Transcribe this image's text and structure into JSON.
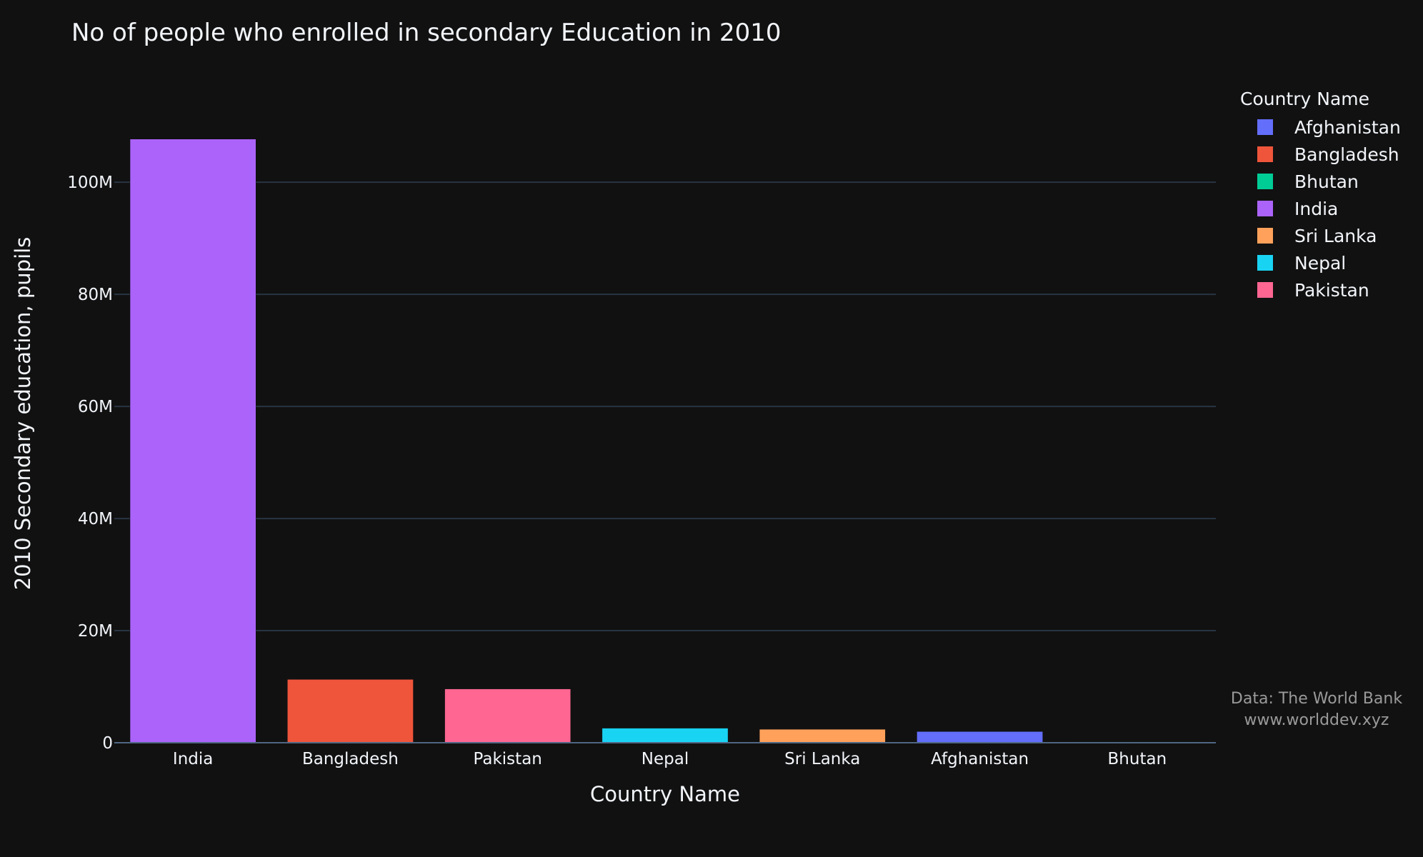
{
  "chart_data": {
    "type": "bar",
    "title": "No of people who enrolled in secondary Education in 2010",
    "xlabel": "Country Name",
    "ylabel": "2010 Secondary education, pupils",
    "categories": [
      "India",
      "Bangladesh",
      "Pakistan",
      "Nepal",
      "Sri Lanka",
      "Afghanistan",
      "Bhutan"
    ],
    "values": [
      107700000,
      11300000,
      9600000,
      2600000,
      2400000,
      2000000,
      70000
    ],
    "colors": [
      "#ab63fa",
      "#ef553b",
      "#ff6692",
      "#19d3f3",
      "#ffa15a",
      "#636efa",
      "#00cc96"
    ],
    "yticks": [
      0,
      20000000,
      40000000,
      60000000,
      80000000,
      100000000
    ],
    "ytick_labels": [
      "0",
      "20M",
      "40M",
      "60M",
      "80M",
      "100M"
    ],
    "ylim": [
      0,
      113400000
    ],
    "grid": true,
    "legend": {
      "title": "Country Name",
      "position": "right",
      "entries": [
        {
          "name": "Afghanistan",
          "color": "#636efa"
        },
        {
          "name": "Bangladesh",
          "color": "#ef553b"
        },
        {
          "name": "Bhutan",
          "color": "#00cc96"
        },
        {
          "name": "India",
          "color": "#ab63fa"
        },
        {
          "name": "Sri Lanka",
          "color": "#ffa15a"
        },
        {
          "name": "Nepal",
          "color": "#19d3f3"
        },
        {
          "name": "Pakistan",
          "color": "#ff6692"
        }
      ]
    },
    "annotation": [
      "Data: The World Bank",
      "www.worlddev.xyz"
    ]
  }
}
